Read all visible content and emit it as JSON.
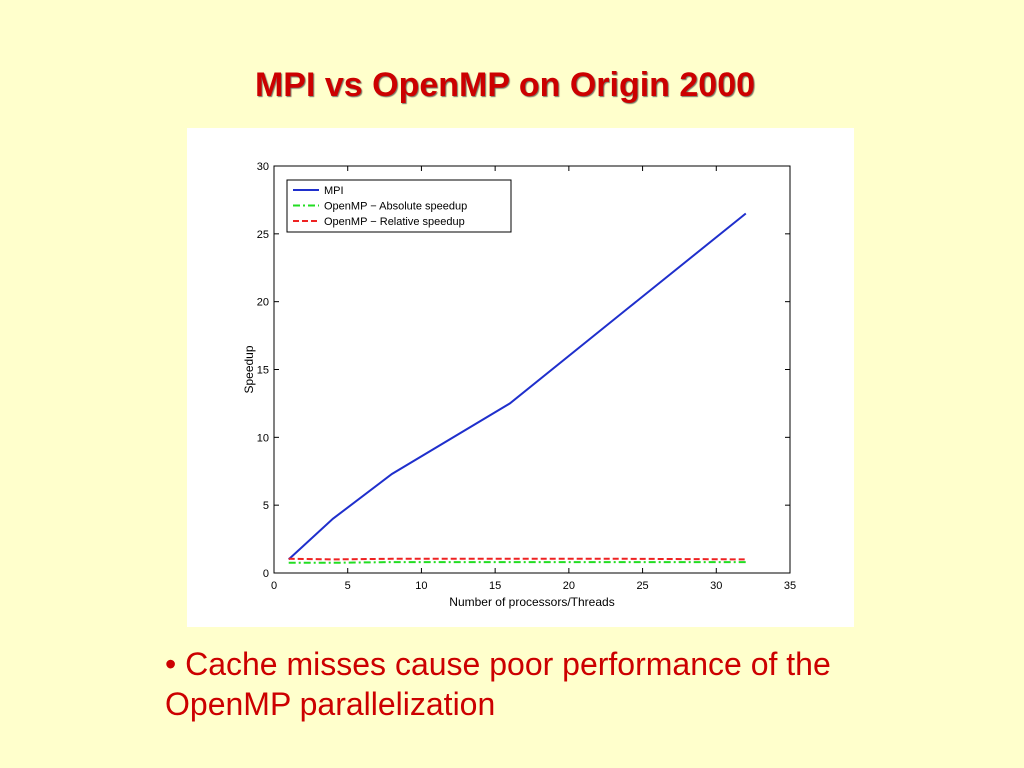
{
  "slide": {
    "title": "MPI vs OpenMP on Origin 2000",
    "bullet": "• Cache misses cause poor performance of the OpenMP parallelization"
  },
  "colors": {
    "background": "#FFFFCC",
    "text_accent": "#CC0000",
    "mpi": "#1F2FCC",
    "openmp_absolute": "#22DD22",
    "openmp_relative": "#EE2222"
  },
  "chart_data": {
    "type": "line",
    "title": "",
    "xlabel": "Number of processors/Threads",
    "ylabel": "Speedup",
    "xlim": [
      0,
      35
    ],
    "ylim": [
      0,
      30
    ],
    "xticks": [
      "0",
      "5",
      "10",
      "15",
      "20",
      "25",
      "30",
      "35"
    ],
    "yticks": [
      "0",
      "5",
      "10",
      "15",
      "20",
      "25",
      "30"
    ],
    "grid": false,
    "legend_position": "top-left",
    "series": [
      {
        "name": "MPI",
        "style": "solid",
        "color": "#1F2FCC",
        "x": [
          1,
          4,
          8,
          16,
          24,
          32
        ],
        "y": [
          1,
          4,
          7.3,
          12.5,
          19.5,
          26.5
        ]
      },
      {
        "name": "OpenMP − Absolute speedup",
        "style": "dashdot",
        "color": "#22DD22",
        "x": [
          1,
          4,
          8,
          16,
          24,
          32
        ],
        "y": [
          0.75,
          0.75,
          0.8,
          0.8,
          0.8,
          0.8
        ]
      },
      {
        "name": "OpenMP − Relative speedup",
        "style": "dashed",
        "color": "#EE2222",
        "x": [
          1,
          4,
          8,
          16,
          24,
          32
        ],
        "y": [
          1.05,
          1,
          1.05,
          1.05,
          1.05,
          1.0
        ]
      }
    ]
  }
}
